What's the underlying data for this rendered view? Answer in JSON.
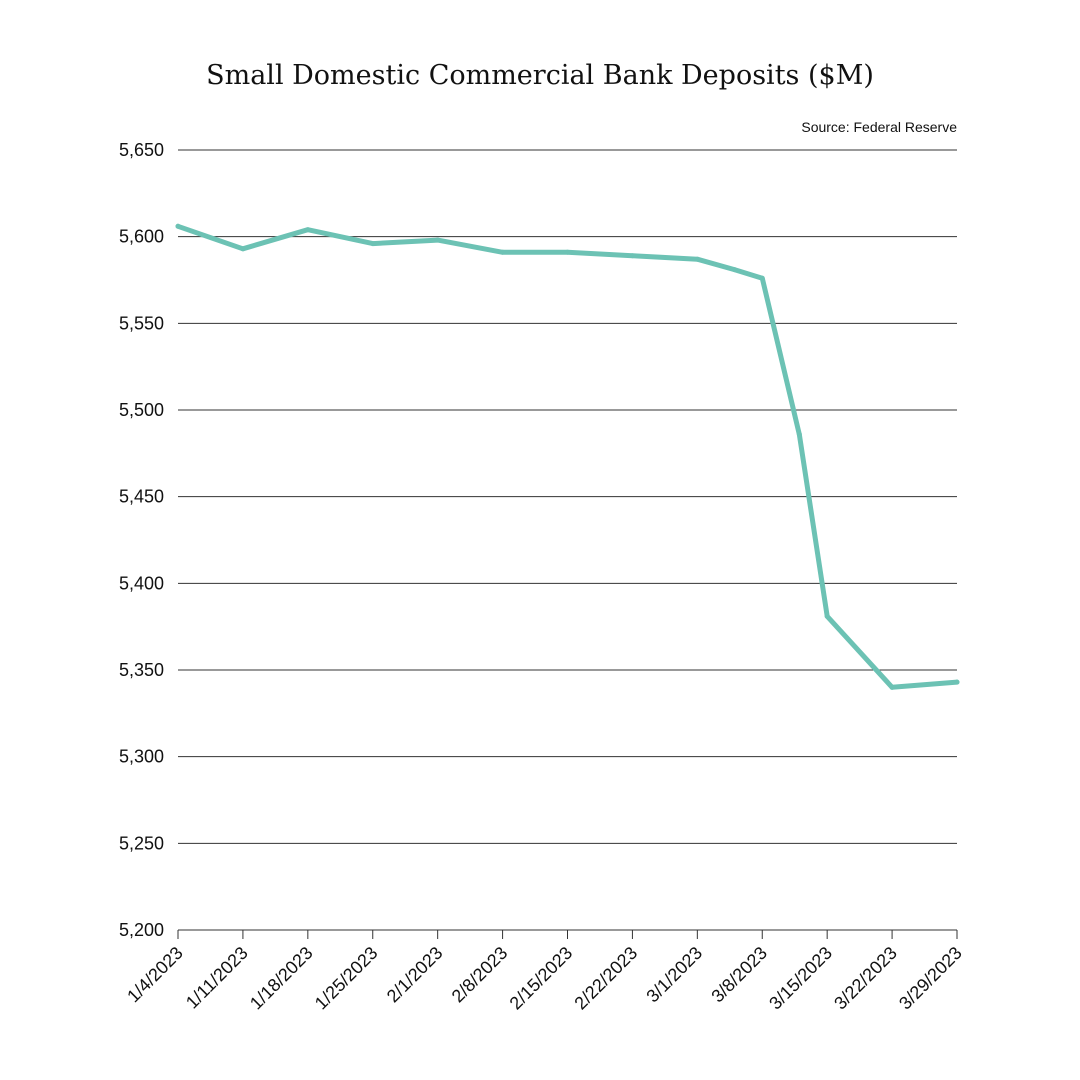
{
  "chart_data": {
    "type": "line",
    "title": "Small Domestic Commercial Bank Deposits ($M)",
    "source": "Source: Federal Reserve",
    "xlabel": "",
    "ylabel": "",
    "ylim": [
      5200,
      5650
    ],
    "y_ticks": [
      "5,200",
      "5,250",
      "5,300",
      "5,350",
      "5,400",
      "5,450",
      "5,500",
      "5,550",
      "5,600",
      "5,650"
    ],
    "y_tick_values": [
      5200,
      5250,
      5300,
      5350,
      5400,
      5450,
      5500,
      5550,
      5600,
      5650
    ],
    "categories": [
      "1/4/2023",
      "1/11/2023",
      "1/18/2023",
      "1/25/2023",
      "2/1/2023",
      "2/8/2023",
      "2/15/2023",
      "2/22/2023",
      "3/1/2023",
      "3/8/2023",
      "3/15/2023",
      "3/22/2023",
      "3/29/2023"
    ],
    "x_tick_labels": [
      "1/4/2023",
      "1/11/2023",
      "1/18/2023",
      "1/25/2023",
      "2/1/2023",
      "2/8/2023",
      "2/15/2023",
      "2/22/2023",
      "3/1/2023",
      "3/8/2023",
      "3/15/2023",
      "3/22/2023",
      "3/29/2023"
    ],
    "x": [
      "1/4/2023",
      "1/11/2023",
      "1/18/2023",
      "1/25/2023",
      "2/1/2023",
      "2/8/2023",
      "2/15/2023",
      "2/22/2023",
      "3/1/2023",
      "3/5/2023",
      "3/8/2023",
      "3/12/2023",
      "3/15/2023",
      "3/22/2023",
      "3/29/2023"
    ],
    "series": [
      {
        "values": [
          5606,
          5593,
          5604,
          5596,
          5598,
          5591,
          5591,
          5589,
          5587,
          5581,
          5576,
          5486,
          5381,
          5340,
          5343
        ],
        "color": "#6cc2b4"
      }
    ],
    "grid": true,
    "legend": "none"
  }
}
